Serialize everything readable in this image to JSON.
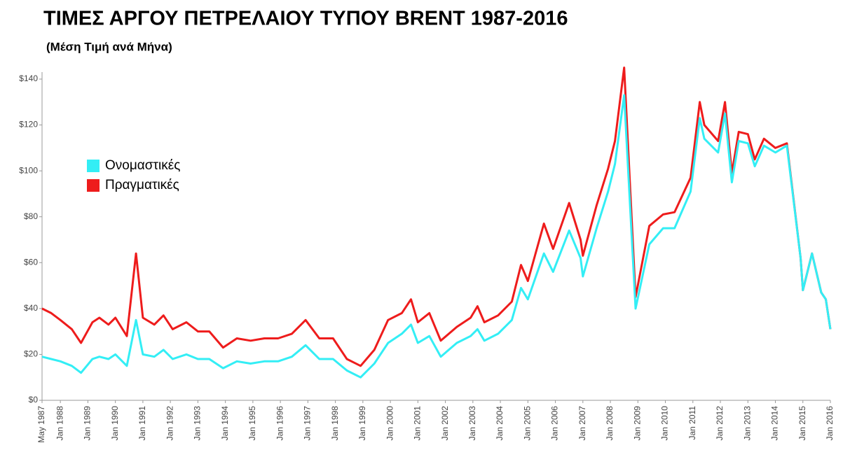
{
  "chart_data": {
    "type": "line",
    "title": "ΤΙΜΕΣ ΑΡΓΟΥ ΠΕΤΡΕΛΑΙΟΥ ΤΥΠΟΥ BRENT 1987-2016",
    "subtitle": "(Μέση Τιμή ανά Μήνα)",
    "x": [
      "1987-05",
      "1987-09",
      "1988-01",
      "1988-06",
      "1988-10",
      "1989-03",
      "1989-06",
      "1989-10",
      "1990-01",
      "1990-06",
      "1990-10",
      "1991-01",
      "1991-06",
      "1991-10",
      "1992-02",
      "1992-08",
      "1993-01",
      "1993-06",
      "1993-12",
      "1994-06",
      "1994-12",
      "1995-06",
      "1995-12",
      "1996-06",
      "1996-12",
      "1997-06",
      "1997-12",
      "1998-06",
      "1998-12",
      "1999-06",
      "1999-12",
      "2000-06",
      "2000-10",
      "2001-01",
      "2001-06",
      "2001-11",
      "2002-06",
      "2002-12",
      "2003-03",
      "2003-06",
      "2003-12",
      "2004-06",
      "2004-10",
      "2005-01",
      "2005-08",
      "2005-12",
      "2006-07",
      "2006-12",
      "2007-01",
      "2007-07",
      "2007-12",
      "2008-03",
      "2008-07",
      "2008-12",
      "2009-06",
      "2009-12",
      "2010-05",
      "2010-12",
      "2011-04",
      "2011-06",
      "2011-12",
      "2012-03",
      "2012-06",
      "2012-09",
      "2013-01",
      "2013-04",
      "2013-08",
      "2014-01",
      "2014-06",
      "2014-12",
      "2015-01",
      "2015-05",
      "2015-09",
      "2015-11",
      "2016-01"
    ],
    "series": [
      {
        "name": "Ονομαστικές",
        "color": "#33eef5",
        "values": [
          19,
          18,
          17,
          15,
          12,
          18,
          19,
          18,
          20,
          15,
          35,
          20,
          19,
          22,
          18,
          20,
          18,
          18,
          14,
          17,
          16,
          17,
          17,
          19,
          24,
          18,
          18,
          13,
          10,
          16,
          25,
          29,
          33,
          25,
          28,
          19,
          25,
          28,
          31,
          26,
          29,
          35,
          49,
          44,
          64,
          56,
          74,
          62,
          54,
          75,
          91,
          103,
          133,
          40,
          68,
          75,
          75,
          91,
          123,
          114,
          108,
          125,
          95,
          113,
          112,
          102,
          111,
          108,
          111,
          62,
          48,
          64,
          47,
          44,
          31
        ]
      },
      {
        "name": "Πραγματικές",
        "color": "#ee1c1c",
        "values": [
          40,
          38,
          35,
          31,
          25,
          34,
          36,
          33,
          36,
          28,
          64,
          36,
          33,
          37,
          31,
          34,
          30,
          30,
          23,
          27,
          26,
          27,
          27,
          29,
          35,
          27,
          27,
          18,
          15,
          22,
          35,
          38,
          44,
          34,
          38,
          26,
          32,
          36,
          41,
          34,
          37,
          43,
          59,
          52,
          77,
          66,
          86,
          70,
          63,
          85,
          101,
          113,
          145,
          45,
          76,
          81,
          82,
          97,
          130,
          120,
          113,
          130,
          99,
          117,
          116,
          105,
          114,
          110,
          112,
          62,
          48,
          64,
          47,
          44,
          31
        ]
      }
    ],
    "ylim": [
      0,
      140
    ],
    "yticks": [
      {
        "value": 0,
        "label": "$0"
      },
      {
        "value": 20,
        "label": "$20"
      },
      {
        "value": 40,
        "label": "$40"
      },
      {
        "value": 60,
        "label": "$60"
      },
      {
        "value": 80,
        "label": "$80"
      },
      {
        "value": 100,
        "label": "$100"
      },
      {
        "value": 120,
        "label": "$120"
      },
      {
        "value": 140,
        "label": "$140"
      }
    ],
    "xlim": [
      "1987-05",
      "2016-01"
    ],
    "xticks": [
      {
        "value": "1987-05",
        "label": "May 1987"
      },
      {
        "value": "1988-01",
        "label": "Jan 1988"
      },
      {
        "value": "1989-01",
        "label": "Jan 1989"
      },
      {
        "value": "1990-01",
        "label": "Jan 1990"
      },
      {
        "value": "1991-01",
        "label": "Jan 1991"
      },
      {
        "value": "1992-01",
        "label": "Jan 1992"
      },
      {
        "value": "1993-01",
        "label": "Jan 1993"
      },
      {
        "value": "1994-01",
        "label": "Jan 1994"
      },
      {
        "value": "1995-01",
        "label": "Jan 1995"
      },
      {
        "value": "1996-01",
        "label": "Jan 1996"
      },
      {
        "value": "1997-01",
        "label": "Jan 1997"
      },
      {
        "value": "1998-01",
        "label": "Jan 1998"
      },
      {
        "value": "1999-01",
        "label": "Jan 1999"
      },
      {
        "value": "2000-01",
        "label": "Jan 2000"
      },
      {
        "value": "2001-01",
        "label": "Jan 2001"
      },
      {
        "value": "2002-01",
        "label": "Jan 2002"
      },
      {
        "value": "2003-01",
        "label": "Jan 2003"
      },
      {
        "value": "2004-01",
        "label": "Jan 2004"
      },
      {
        "value": "2005-01",
        "label": "Jan 2005"
      },
      {
        "value": "2006-01",
        "label": "Jan 2006"
      },
      {
        "value": "2007-01",
        "label": "Jan 2007"
      },
      {
        "value": "2008-01",
        "label": "Jan 2008"
      },
      {
        "value": "2009-01",
        "label": "Jan 2009"
      },
      {
        "value": "2010-01",
        "label": "Jan 2010"
      },
      {
        "value": "2011-01",
        "label": "Jan 2011"
      },
      {
        "value": "2012-01",
        "label": "Jan 2012"
      },
      {
        "value": "2013-01",
        "label": "Jan 2013"
      },
      {
        "value": "2014-01",
        "label": "Jan 2014"
      },
      {
        "value": "2015-01",
        "label": "Jan 2015"
      },
      {
        "value": "2016-01",
        "label": "Jan 2016"
      }
    ]
  }
}
